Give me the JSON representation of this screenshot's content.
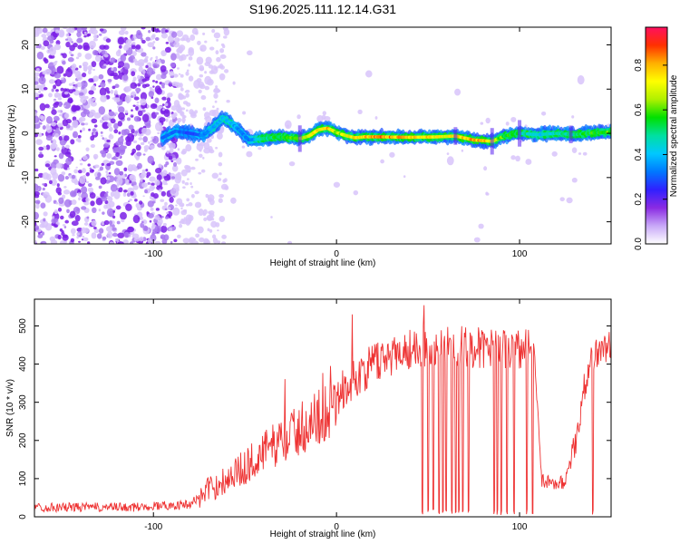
{
  "figure": {
    "title": "S196.2025.111.12.14.G31"
  },
  "chart_data": [
    {
      "type": "heatmap",
      "panel": "top",
      "title": "S196.2025.111.12.14.G31",
      "xlabel": "Height of straight line (km)",
      "ylabel": "Frequency (Hz)",
      "xlim": [
        -165,
        150
      ],
      "ylim": [
        -25,
        24
      ],
      "xticks": [
        -100,
        0,
        100
      ],
      "yticks": [
        -20,
        -10,
        0,
        10,
        20
      ],
      "colorbar": {
        "label": "Normalized spectral amplitude",
        "range": [
          0,
          0.97
        ],
        "ticks": [
          "0.0",
          "0.2",
          "0.4",
          "0.6",
          "0.8"
        ],
        "colormap": [
          "#ffffff",
          "#c8a8f8",
          "#8a2be2",
          "#3020ff",
          "#0078ff",
          "#00c8ff",
          "#00e0a0",
          "#00e000",
          "#b0f000",
          "#ffff00",
          "#ffb000",
          "#ff3000",
          "#ff1060"
        ]
      },
      "ridge": {
        "x": [
          -95,
          -88,
          -80,
          -73,
          -67,
          -62,
          -55,
          -48,
          -40,
          -32,
          -25,
          -20,
          -15,
          -10,
          -5,
          0,
          5,
          10,
          15,
          25,
          40,
          55,
          65,
          75,
          85,
          92,
          100,
          110,
          120,
          130,
          140,
          150
        ],
        "y": [
          -1,
          0.5,
          0,
          -0.5,
          1.5,
          3.5,
          1.5,
          -1.5,
          -1.2,
          -0.8,
          -1,
          -1.2,
          -0.6,
          0.8,
          1.2,
          0.2,
          -0.5,
          -1,
          -0.8,
          -0.8,
          -0.9,
          -0.8,
          -0.6,
          -1.5,
          -1.8,
          -0.6,
          0,
          -0.3,
          0,
          -0.3,
          0.1,
          0.3
        ],
        "amplitude": [
          0.35,
          0.35,
          0.3,
          0.35,
          0.4,
          0.45,
          0.4,
          0.35,
          0.5,
          0.6,
          0.65,
          0.7,
          0.75,
          0.8,
          0.85,
          0.7,
          0.75,
          0.8,
          0.85,
          0.9,
          0.85,
          0.8,
          0.8,
          0.85,
          0.8,
          0.6,
          0.55,
          0.45,
          0.5,
          0.55,
          0.6,
          0.65
        ]
      }
    },
    {
      "type": "line",
      "panel": "bottom",
      "xlabel": "Height of straight line (km)",
      "ylabel": "SNR (10 * v/v)",
      "xlim": [
        -165,
        150
      ],
      "ylim": [
        0,
        570
      ],
      "xticks": [
        -100,
        0,
        100
      ],
      "yticks": [
        0,
        100,
        200,
        300,
        400,
        500
      ],
      "color": "#ee3333",
      "series": [
        {
          "x": [
            -165,
            -150,
            -130,
            -110,
            -95,
            -85,
            -80,
            -75,
            -70,
            -65,
            -60,
            -55,
            -50,
            -45,
            -40,
            -35,
            -30,
            -25,
            -20,
            -15,
            -10,
            -5,
            0,
            5,
            10,
            15,
            20,
            25,
            30,
            35,
            40,
            45,
            50,
            55,
            60,
            65,
            70,
            75,
            80,
            85,
            90,
            95,
            100,
            105,
            108,
            112,
            118,
            125,
            130,
            135,
            140,
            145,
            150
          ],
          "y": [
            25,
            25,
            25,
            25,
            30,
            30,
            35,
            50,
            70,
            85,
            100,
            115,
            130,
            150,
            170,
            185,
            200,
            215,
            230,
            245,
            260,
            280,
            310,
            340,
            360,
            380,
            400,
            415,
            425,
            435,
            440,
            445,
            448,
            450,
            450,
            448,
            445,
            445,
            440,
            440,
            440,
            440,
            440,
            440,
            440,
            95,
            90,
            90,
            180,
            330,
            420,
            440,
            450
          ]
        }
      ],
      "dropouts_x": [
        47,
        50,
        53,
        56,
        58,
        60,
        63,
        65,
        67,
        69,
        72,
        86,
        88,
        90,
        93,
        97,
        104,
        107,
        140
      ]
    }
  ]
}
